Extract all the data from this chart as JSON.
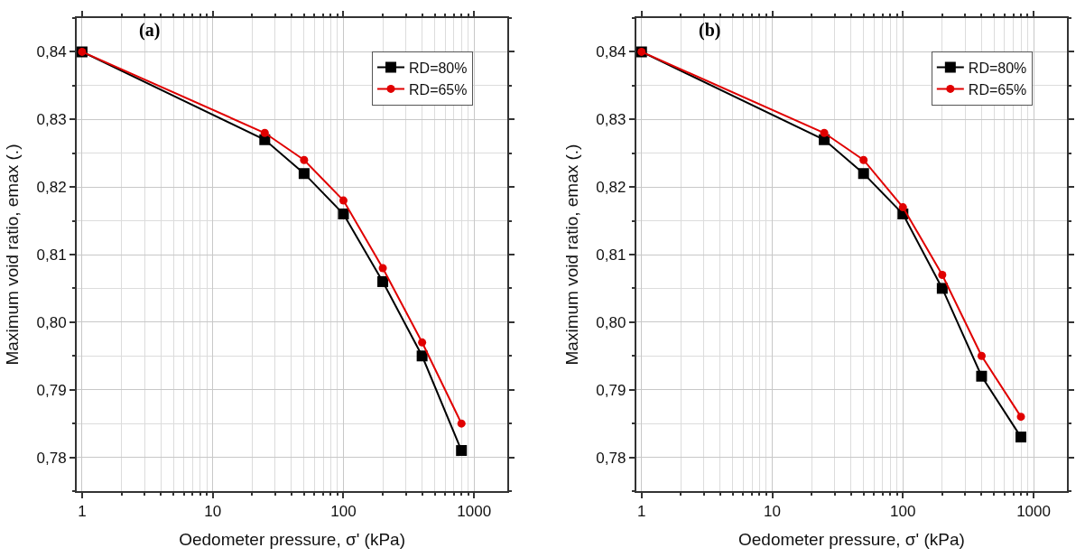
{
  "chart_data": [
    {
      "type": "line",
      "annotations": [
        "(a)"
      ],
      "xlabel": "Oedometer pressure, σ' (kPa)",
      "ylabel": "Maximum void ratio, emax (.)",
      "x": [
        1,
        25,
        50,
        100,
        200,
        400,
        800
      ],
      "log": "x",
      "grid": true,
      "legend": "top right",
      "line_style": "solid",
      "xlim": [
        0.91,
        1800
      ],
      "xticks": [
        1,
        10,
        100,
        1000
      ],
      "ylim": [
        0.775,
        0.845
      ],
      "yticks": [
        {
          "value": 0.78,
          "label": "0,78"
        },
        {
          "value": 0.79,
          "label": "0,79"
        },
        {
          "value": 0.8,
          "label": "0,80"
        },
        {
          "value": 0.81,
          "label": "0,81"
        },
        {
          "value": 0.82,
          "label": "0,82"
        },
        {
          "value": 0.83,
          "label": "0,83"
        },
        {
          "value": 0.84,
          "label": "0,84"
        }
      ],
      "series": [
        {
          "name": "RD=80%",
          "color": "#000000",
          "marker": "square",
          "values": [
            0.84,
            0.827,
            0.822,
            0.816,
            0.806,
            0.795,
            0.781
          ]
        },
        {
          "name": "RD=65%",
          "color": "#e00000",
          "marker": "circle",
          "values": [
            0.84,
            0.828,
            0.824,
            0.818,
            0.808,
            0.797,
            0.785
          ]
        }
      ]
    },
    {
      "type": "line",
      "annotations": [
        "(b)"
      ],
      "xlabel": "Oedometer pressure, σ' (kPa)",
      "ylabel": "Maximum void ratio, emax (.)",
      "x": [
        1,
        25,
        50,
        100,
        200,
        400,
        800
      ],
      "log": "x",
      "grid": true,
      "legend": "top right",
      "line_style": "solid",
      "xlim": [
        0.91,
        1800
      ],
      "xticks": [
        1,
        10,
        100,
        1000
      ],
      "ylim": [
        0.775,
        0.845
      ],
      "yticks": [
        {
          "value": 0.78,
          "label": "0,78"
        },
        {
          "value": 0.79,
          "label": "0,79"
        },
        {
          "value": 0.8,
          "label": "0,80"
        },
        {
          "value": 0.81,
          "label": "0,81"
        },
        {
          "value": 0.82,
          "label": "0,82"
        },
        {
          "value": 0.83,
          "label": "0,83"
        },
        {
          "value": 0.84,
          "label": "0,84"
        }
      ],
      "series": [
        {
          "name": "RD=80%",
          "color": "#000000",
          "marker": "square",
          "values": [
            0.84,
            0.827,
            0.822,
            0.816,
            0.805,
            0.792,
            0.783
          ]
        },
        {
          "name": "RD=65%",
          "color": "#e00000",
          "marker": "circle",
          "values": [
            0.84,
            0.828,
            0.824,
            0.817,
            0.807,
            0.795,
            0.786
          ]
        }
      ]
    }
  ]
}
